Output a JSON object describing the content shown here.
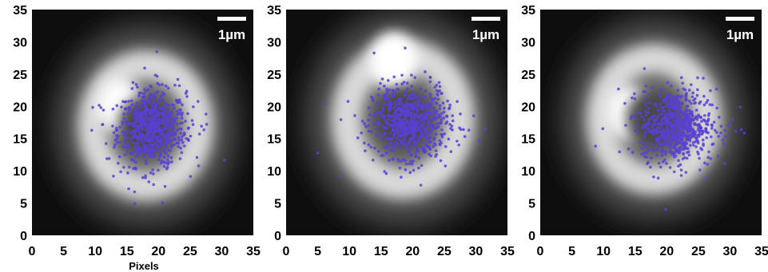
{
  "figure": {
    "x_axis_label": "Pixels",
    "x_label_under_panel": 0,
    "scale_bar_label": "1µm",
    "tick_labels": [
      "0",
      "5",
      "10",
      "15",
      "20",
      "25",
      "30",
      "35"
    ],
    "axis_range": [
      0,
      35
    ],
    "point_color": "#5a3fd0",
    "panels": [
      {
        "id": "panel-1",
        "ring_center": [
          18,
          17
        ],
        "ring_radius": 8,
        "bright_lobe": [
          14,
          20
        ],
        "scatter_center": [
          19,
          16.5
        ],
        "scatter_spread": [
          3.0,
          3.2
        ]
      },
      {
        "id": "panel-2",
        "ring_center": [
          18.5,
          18
        ],
        "ring_radius": 8.5,
        "bright_lobe": [
          17,
          27
        ],
        "scatter_center": [
          19.5,
          17.5
        ],
        "scatter_spread": [
          3.2,
          3.0
        ]
      },
      {
        "id": "panel-3",
        "ring_center": [
          18,
          18
        ],
        "ring_radius": 8,
        "bright_lobe": [
          14,
          19
        ],
        "scatter_center": [
          21.5,
          17
        ],
        "scatter_spread": [
          3.0,
          3.0
        ]
      }
    ]
  }
}
